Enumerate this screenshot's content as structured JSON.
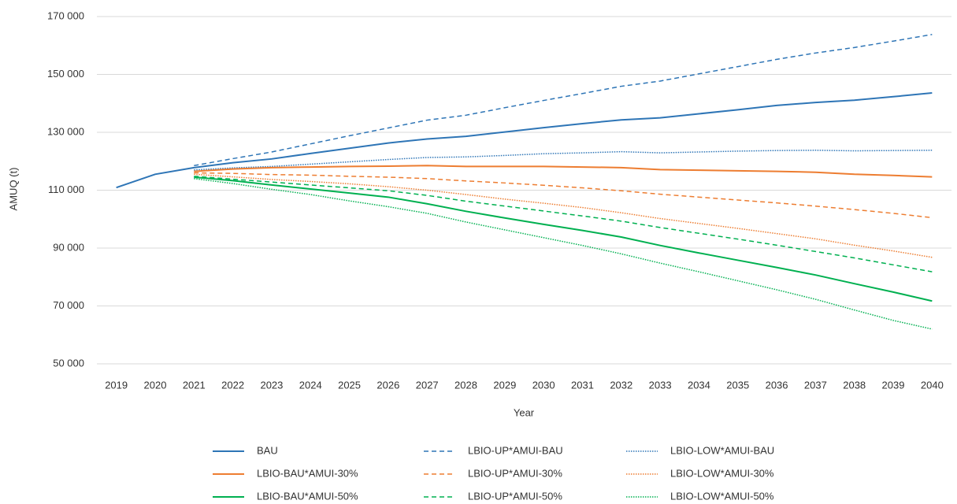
{
  "chart_data": {
    "type": "line",
    "y_label": "AMUQ (t)",
    "x_label": "Year",
    "categories": [
      "2019",
      "2020",
      "2021",
      "2022",
      "2023",
      "2024",
      "2025",
      "2026",
      "2027",
      "2028",
      "2029",
      "2030",
      "2031",
      "2032",
      "2033",
      "2034",
      "2035",
      "2036",
      "2037",
      "2038",
      "2039",
      "2040"
    ],
    "ylim": [
      50000,
      170000
    ],
    "yticks": [
      {
        "value": 50000,
        "label": "50 000"
      },
      {
        "value": 70000,
        "label": "70 000"
      },
      {
        "value": 90000,
        "label": "90 000"
      },
      {
        "value": 110000,
        "label": "110 000"
      },
      {
        "value": 130000,
        "label": "130 000"
      },
      {
        "value": 150000,
        "label": "150 000"
      },
      {
        "value": 170000,
        "label": "170 000"
      }
    ],
    "grid": true,
    "legend": "bottom",
    "series": [
      {
        "name": "BAU",
        "color": "#2e75b6",
        "dash": "solid",
        "values": [
          110900,
          115500,
          117800,
          119500,
          120800,
          122700,
          124500,
          126300,
          127700,
          128600,
          130100,
          131600,
          133000,
          134300,
          135000,
          136400,
          137800,
          139300,
          140300,
          141100,
          142300,
          143600
        ]
      },
      {
        "name": "LBIO-UP*AMUI-BAU",
        "color": "#2e75b6",
        "dash": "dashed",
        "values": [
          null,
          null,
          118500,
          120900,
          123200,
          126000,
          128800,
          131500,
          134200,
          135900,
          138500,
          141000,
          143400,
          145900,
          147700,
          150200,
          152700,
          155200,
          157400,
          159300,
          161500,
          163800
        ]
      },
      {
        "name": "LBIO-LOW*AMUI-BAU",
        "color": "#2e75b6",
        "dash": "dotted",
        "values": [
          null,
          null,
          117000,
          117700,
          118200,
          119000,
          119800,
          120600,
          121300,
          121500,
          122000,
          122600,
          122900,
          123300,
          122900,
          123200,
          123500,
          123700,
          123800,
          123600,
          123700,
          123800
        ]
      },
      {
        "name": "LBIO-BAU*AMUI-30%",
        "color": "#ed7d31",
        "dash": "solid",
        "values": [
          null,
          null,
          116500,
          117300,
          117800,
          118000,
          118200,
          118300,
          118500,
          118200,
          118200,
          118200,
          118000,
          117800,
          117100,
          116900,
          116700,
          116500,
          116200,
          115500,
          115100,
          114600
        ]
      },
      {
        "name": "LBIO-UP*AMUI-30%",
        "color": "#ed7d31",
        "dash": "dashed",
        "values": [
          null,
          null,
          116000,
          115800,
          115400,
          115200,
          114800,
          114500,
          114000,
          113200,
          112500,
          111700,
          110800,
          109800,
          108600,
          107600,
          106600,
          105600,
          104500,
          103300,
          102000,
          100500
        ]
      },
      {
        "name": "LBIO-LOW*AMUI-30%",
        "color": "#ed7d31",
        "dash": "dotted",
        "values": [
          null,
          null,
          115500,
          114600,
          113700,
          113000,
          112200,
          111200,
          110000,
          108500,
          106900,
          105500,
          104000,
          102200,
          100200,
          98500,
          96800,
          95000,
          93200,
          91000,
          89000,
          86800
        ]
      },
      {
        "name": "LBIO-BAU*AMUI-50%",
        "color": "#00b050",
        "dash": "solid",
        "values": [
          null,
          null,
          114500,
          113300,
          111800,
          110400,
          109000,
          107600,
          105300,
          102700,
          100400,
          98200,
          96100,
          93800,
          90900,
          88300,
          85800,
          83300,
          80700,
          77700,
          74800,
          71700
        ]
      },
      {
        "name": "LBIO-UP*AMUI-50%",
        "color": "#00b050",
        "dash": "dashed",
        "values": [
          null,
          null,
          114800,
          113800,
          112800,
          111800,
          110800,
          109800,
          108200,
          106200,
          104500,
          102800,
          101100,
          99300,
          97100,
          95100,
          93100,
          91000,
          88800,
          86600,
          84200,
          81800
        ]
      },
      {
        "name": "LBIO-LOW*AMUI-50%",
        "color": "#00b050",
        "dash": "dotted",
        "values": [
          null,
          null,
          114000,
          112300,
          110300,
          108500,
          106300,
          104300,
          102000,
          99000,
          96300,
          93600,
          90900,
          88000,
          84800,
          81800,
          78700,
          75600,
          72300,
          68600,
          65000,
          62000
        ]
      }
    ]
  }
}
